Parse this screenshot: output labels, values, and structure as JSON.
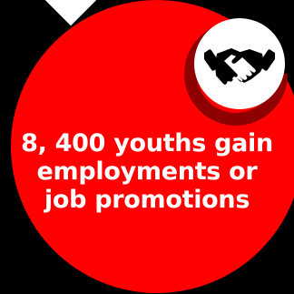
{
  "colors": {
    "background": "#000000",
    "circle": "#ff0000",
    "arc": "#8f0000",
    "icon_bg": "#ffffff",
    "icon": "#000000",
    "text": "#ffffff"
  },
  "icon": "handshake-icon",
  "headline": {
    "line1": "8, 400 youths gain",
    "line2": "employments or",
    "line3": "job promotions"
  }
}
